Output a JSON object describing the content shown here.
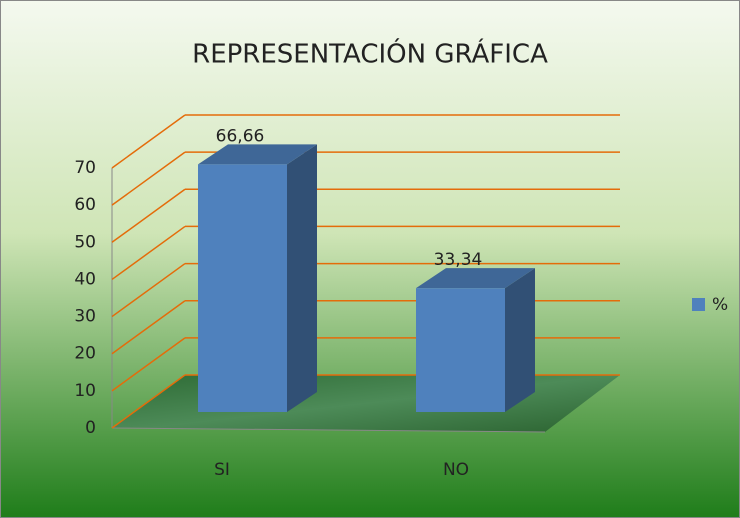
{
  "chart_data": {
    "type": "bar3d",
    "title": "REPRESENTACIÓN GRÁFICA",
    "categories": [
      "SI",
      "NO"
    ],
    "series": [
      {
        "name": "%",
        "color": "#4f81bd",
        "values": [
          66.66,
          33.34
        ],
        "value_labels": [
          "66,66",
          "33,34"
        ]
      }
    ],
    "ylim": [
      0,
      70
    ],
    "yticks": [
      0,
      10,
      20,
      30,
      40,
      50,
      60,
      70
    ],
    "grid": true,
    "grid_color": "#e46c0a",
    "legend": "right"
  }
}
